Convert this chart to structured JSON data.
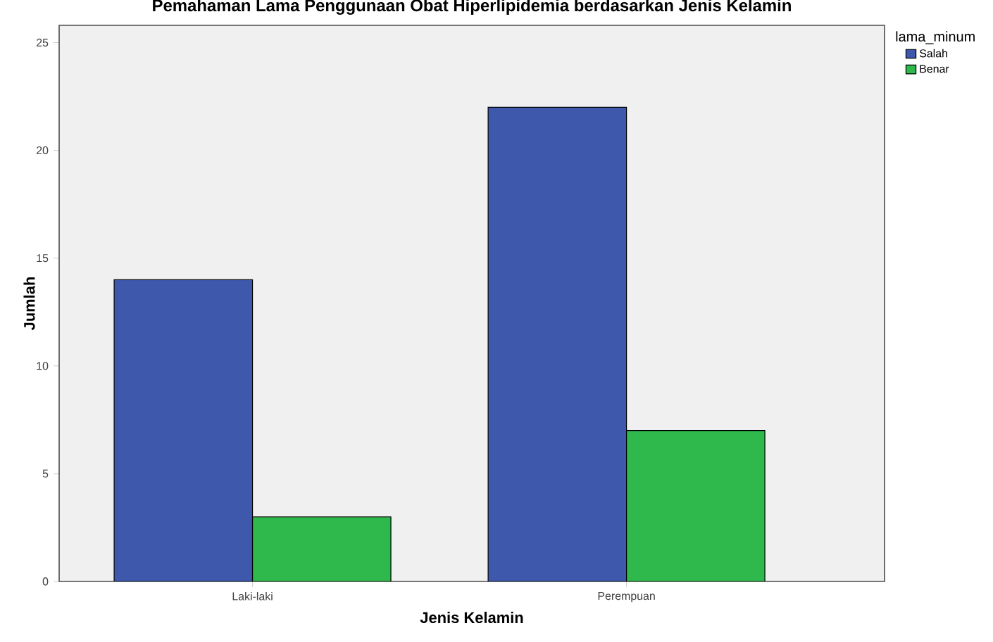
{
  "chart_data": {
    "type": "bar",
    "title": "Pemahaman Lama Penggunaan Obat Hiperlipidemia berdasarkan Jenis Kelamin",
    "xlabel": "Jenis Kelamin",
    "ylabel": "Jumlah",
    "legend_title": "lama_minum",
    "categories": [
      "Laki-laki",
      "Perempuan"
    ],
    "series": [
      {
        "name": "Salah",
        "color": "#3e58ac",
        "values": [
          14,
          22
        ]
      },
      {
        "name": "Benar",
        "color": "#2fb84b",
        "values": [
          3,
          7
        ]
      }
    ],
    "ylim": [
      0,
      25.8
    ],
    "yticks": [
      0,
      5,
      10,
      15,
      20,
      25
    ],
    "grid": false,
    "legend": "top right"
  }
}
